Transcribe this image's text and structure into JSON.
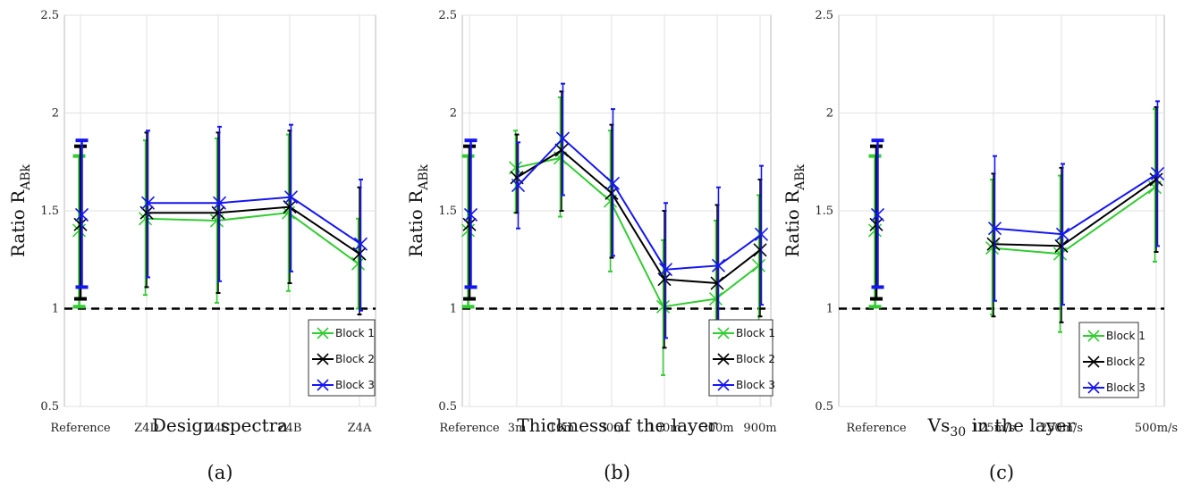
{
  "colors": {
    "block1": "#33cc33",
    "block2": "#000000",
    "block3": "#1515f0"
  },
  "chart_data": [
    {
      "type": "line",
      "panel_label": "(a)",
      "xlabel": "Design spectra",
      "ylabel_main": "Ratio R",
      "ylabel_sub": "ABk",
      "ylim": [
        0.5,
        2.5
      ],
      "yticks": [
        "0.5",
        "1",
        "1.5",
        "2",
        "2.5"
      ],
      "reference_line": 1,
      "legend_position": "bottom-right",
      "categories": [
        "Reference",
        "Z4D",
        "Z4C",
        "Z4B",
        "Z4A"
      ],
      "series": [
        {
          "name": "Block 1",
          "color": "#33cc33",
          "values": [
            1.4,
            1.46,
            1.45,
            1.49,
            1.23
          ],
          "lower": [
            1.01,
            1.07,
            1.03,
            1.09,
            1.0
          ],
          "upper": [
            1.78,
            1.86,
            1.87,
            1.89,
            1.46
          ]
        },
        {
          "name": "Block 2",
          "color": "#000000",
          "values": [
            1.43,
            1.49,
            1.49,
            1.52,
            1.28
          ],
          "lower": [
            1.05,
            1.11,
            1.08,
            1.13,
            0.97
          ],
          "upper": [
            1.83,
            1.9,
            1.9,
            1.91,
            1.62
          ]
        },
        {
          "name": "Block 3",
          "color": "#1515f0",
          "values": [
            1.48,
            1.54,
            1.54,
            1.57,
            1.33
          ],
          "lower": [
            1.11,
            1.16,
            1.14,
            1.19,
            0.99
          ],
          "upper": [
            1.86,
            1.91,
            1.93,
            1.94,
            1.66
          ]
        }
      ]
    },
    {
      "type": "line",
      "panel_label": "(b)",
      "xlabel": "Thickness of the layer",
      "ylabel_main": "Ratio R",
      "ylabel_sub": "ABk",
      "ylim": [
        0.5,
        2.5
      ],
      "yticks": [
        "0.5",
        "1",
        "1.5",
        "2",
        "2.5"
      ],
      "reference_line": 1,
      "legend_position": "bottom-right",
      "categories": [
        "Reference",
        "3m",
        "10m",
        "30m",
        "100m",
        "300m",
        "900m"
      ],
      "series": [
        {
          "name": "Block 1",
          "color": "#33cc33",
          "values": [
            1.4,
            1.72,
            1.77,
            1.55,
            1.01,
            1.05,
            1.22
          ],
          "lower": [
            1.01,
            1.49,
            1.47,
            1.19,
            0.66,
            0.8,
            0.85
          ],
          "upper": [
            1.78,
            1.91,
            2.08,
            1.91,
            1.35,
            1.45,
            1.58
          ]
        },
        {
          "name": "Block 2",
          "color": "#000000",
          "values": [
            1.43,
            1.67,
            1.81,
            1.59,
            1.15,
            1.13,
            1.3
          ],
          "lower": [
            1.05,
            1.49,
            1.5,
            1.26,
            0.8,
            0.84,
            0.96
          ],
          "upper": [
            1.83,
            1.89,
            2.11,
            1.94,
            1.5,
            1.53,
            1.66
          ]
        },
        {
          "name": "Block 3",
          "color": "#1515f0",
          "values": [
            1.48,
            1.63,
            1.87,
            1.64,
            1.2,
            1.22,
            1.38
          ],
          "lower": [
            1.11,
            1.41,
            1.58,
            1.27,
            0.85,
            0.89,
            1.02
          ],
          "upper": [
            1.86,
            1.85,
            2.15,
            2.02,
            1.54,
            1.62,
            1.73
          ]
        }
      ]
    },
    {
      "type": "line",
      "panel_label": "(c)",
      "xlabel_main": "Vs",
      "xlabel_sub": "30",
      "xlabel_rest": " in the layer",
      "ylabel_main": "Ratio R",
      "ylabel_sub": "ABk",
      "ylim": [
        0.5,
        2.5
      ],
      "yticks": [
        "0.5",
        "1",
        "1.5",
        "2",
        "2.5"
      ],
      "reference_line": 1,
      "legend_position": "bottom-center",
      "categories": [
        "Reference",
        "125m/s",
        "250m/s",
        "500m/s"
      ],
      "series": [
        {
          "name": "Block 1",
          "color": "#33cc33",
          "values": [
            1.4,
            1.31,
            1.28,
            1.62
          ],
          "lower": [
            1.01,
            0.97,
            0.88,
            1.24
          ],
          "upper": [
            1.78,
            1.66,
            1.68,
            2.02
          ]
        },
        {
          "name": "Block 2",
          "color": "#000000",
          "values": [
            1.43,
            1.33,
            1.32,
            1.66
          ],
          "lower": [
            1.05,
            0.96,
            0.93,
            1.29
          ],
          "upper": [
            1.83,
            1.69,
            1.72,
            2.03
          ]
        },
        {
          "name": "Block 3",
          "color": "#1515f0",
          "values": [
            1.48,
            1.41,
            1.38,
            1.69
          ],
          "lower": [
            1.11,
            1.04,
            1.02,
            1.32
          ],
          "upper": [
            1.86,
            1.78,
            1.74,
            2.06
          ]
        }
      ]
    }
  ]
}
